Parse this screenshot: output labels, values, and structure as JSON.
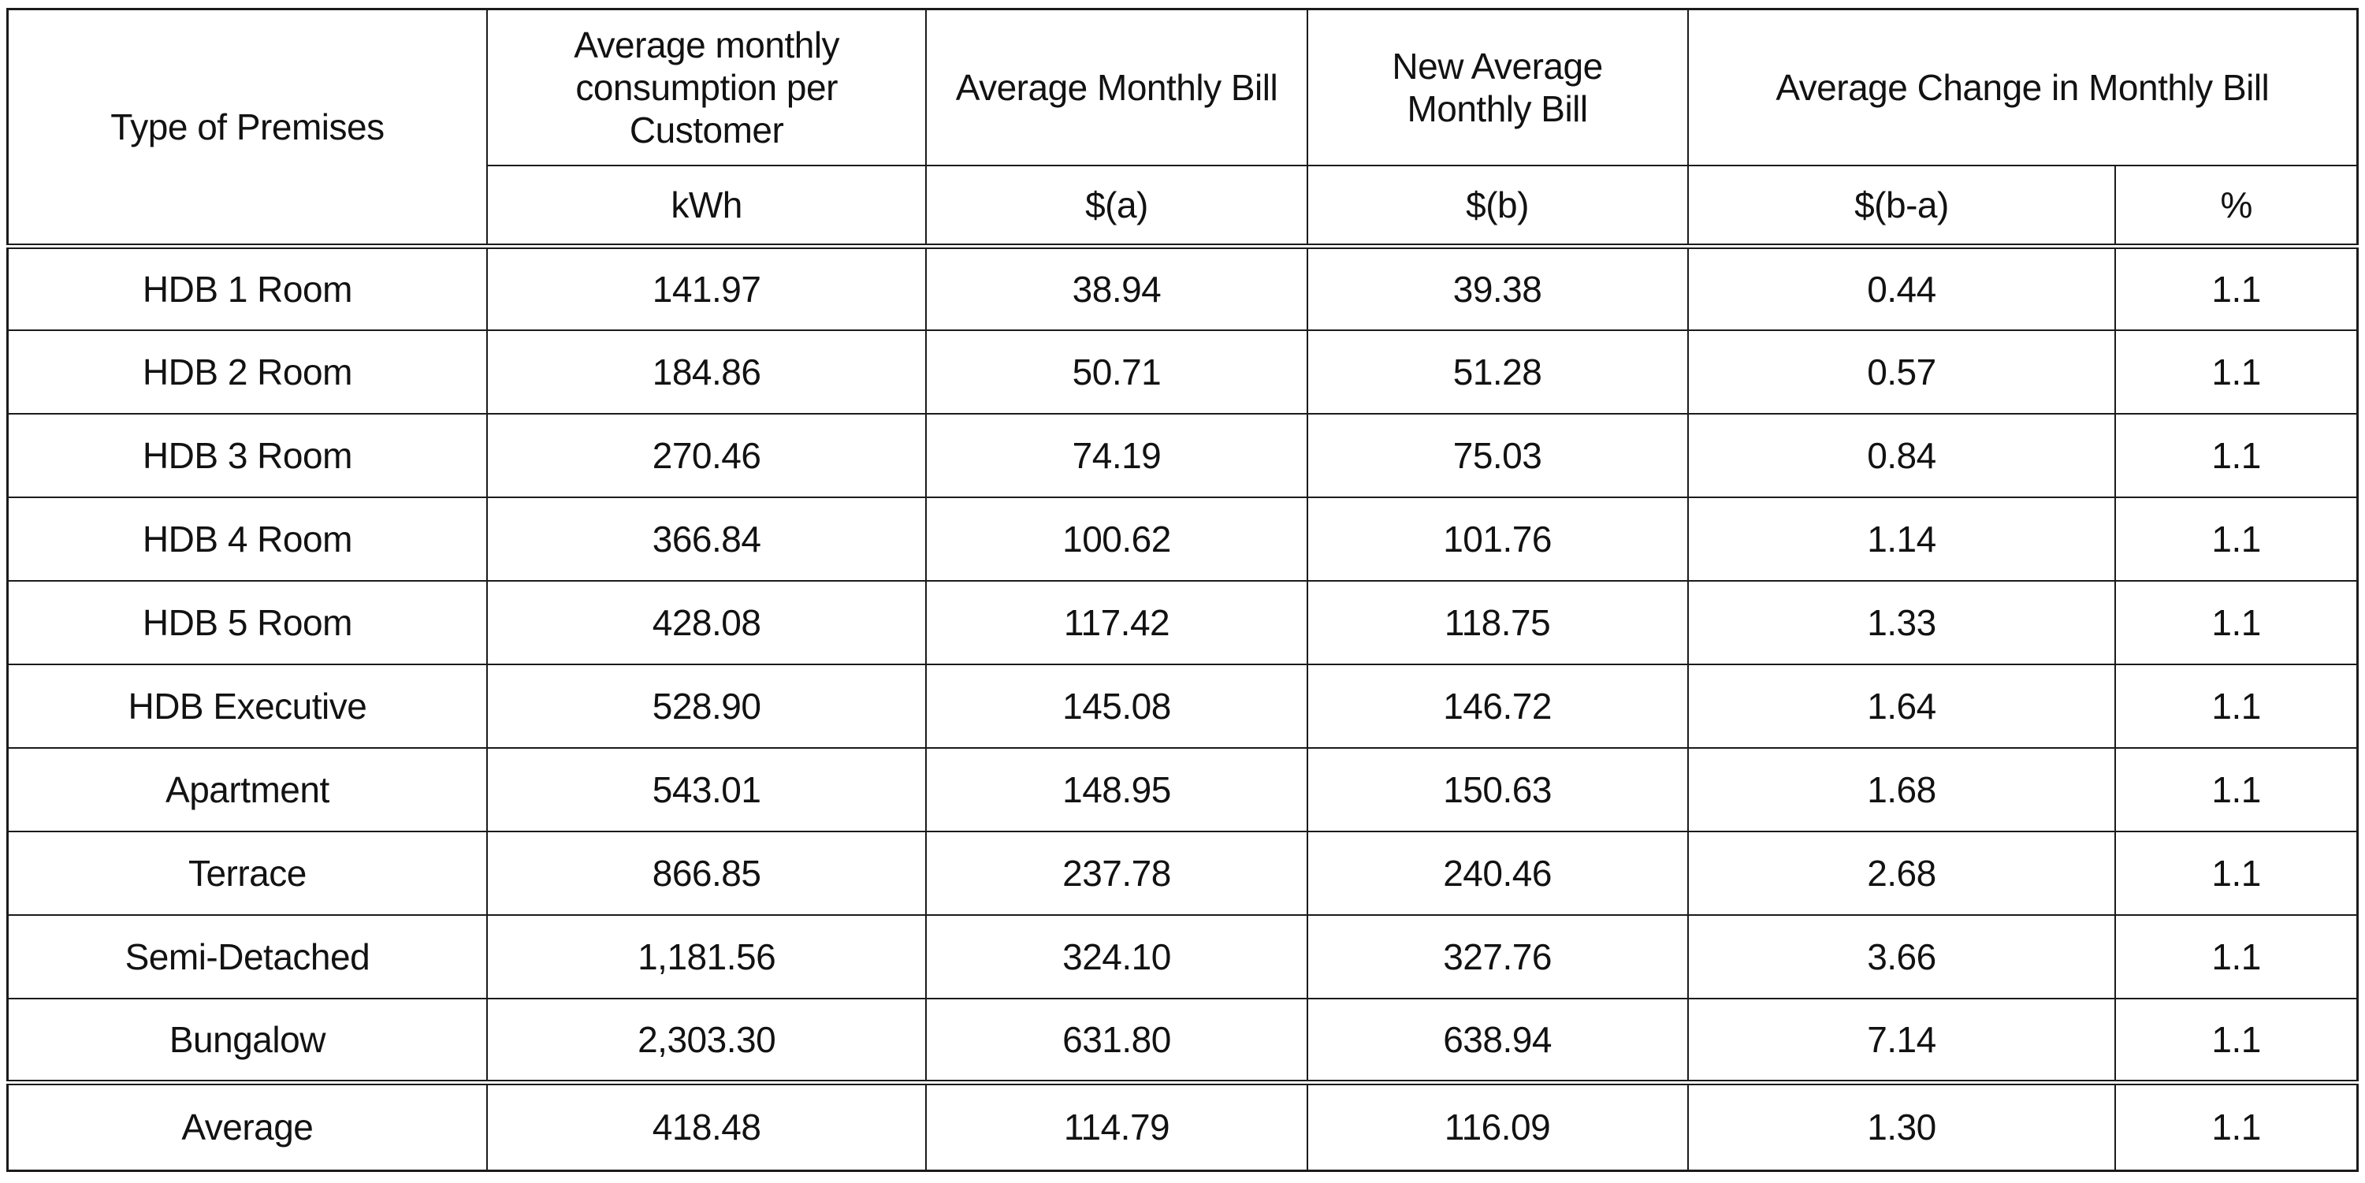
{
  "colors": {
    "background": "#ffffff",
    "border": "#1b1b1b",
    "text": "#121212"
  },
  "table": {
    "header_row_1": {
      "type_of_premises": "Type of Premises",
      "avg_monthly_consumption": "Average monthly consumption per Customer",
      "avg_monthly_bill": "Average Monthly Bill",
      "new_avg_monthly_bill": "New Average Monthly Bill",
      "avg_change_monthly_bill": "Average Change in Monthly Bill"
    },
    "header_row_2": {
      "kwh": "kWh",
      "bill_a": "$(a)",
      "bill_b": "$(b)",
      "change_dollar": "$(b-a)",
      "change_pct": "%"
    },
    "rows": [
      {
        "premises": "HDB 1 Room",
        "kwh": "141.97",
        "bill_a": "38.94",
        "bill_b": "39.38",
        "change_dollar": "0.44",
        "change_pct": "1.1"
      },
      {
        "premises": "HDB 2 Room",
        "kwh": "184.86",
        "bill_a": "50.71",
        "bill_b": "51.28",
        "change_dollar": "0.57",
        "change_pct": "1.1"
      },
      {
        "premises": "HDB 3 Room",
        "kwh": "270.46",
        "bill_a": "74.19",
        "bill_b": "75.03",
        "change_dollar": "0.84",
        "change_pct": "1.1"
      },
      {
        "premises": "HDB 4 Room",
        "kwh": "366.84",
        "bill_a": "100.62",
        "bill_b": "101.76",
        "change_dollar": "1.14",
        "change_pct": "1.1"
      },
      {
        "premises": "HDB 5 Room",
        "kwh": "428.08",
        "bill_a": "117.42",
        "bill_b": "118.75",
        "change_dollar": "1.33",
        "change_pct": "1.1"
      },
      {
        "premises": "HDB Executive",
        "kwh": "528.90",
        "bill_a": "145.08",
        "bill_b": "146.72",
        "change_dollar": "1.64",
        "change_pct": "1.1"
      },
      {
        "premises": "Apartment",
        "kwh": "543.01",
        "bill_a": "148.95",
        "bill_b": "150.63",
        "change_dollar": "1.68",
        "change_pct": "1.1"
      },
      {
        "premises": "Terrace",
        "kwh": "866.85",
        "bill_a": "237.78",
        "bill_b": "240.46",
        "change_dollar": "2.68",
        "change_pct": "1.1"
      },
      {
        "premises": "Semi-Detached",
        "kwh": "1,181.56",
        "bill_a": "324.10",
        "bill_b": "327.76",
        "change_dollar": "3.66",
        "change_pct": "1.1"
      },
      {
        "premises": "Bungalow",
        "kwh": "2,303.30",
        "bill_a": "631.80",
        "bill_b": "638.94",
        "change_dollar": "7.14",
        "change_pct": "1.1"
      }
    ],
    "average_row": {
      "premises": "Average",
      "kwh": "418.48",
      "bill_a": "114.79",
      "bill_b": "116.09",
      "change_dollar": "1.30",
      "change_pct": "1.1"
    }
  },
  "chart_data": {
    "type": "table",
    "columns": [
      "Type of Premises",
      "Average monthly consumption per Customer (kWh)",
      "Average Monthly Bill $(a)",
      "New Average Monthly Bill $(b)",
      "Average Change in Monthly Bill $(b-a)",
      "Average Change in Monthly Bill (%)"
    ],
    "rows": [
      [
        "HDB 1 Room",
        "141.97",
        "38.94",
        "39.38",
        "0.44",
        "1.1"
      ],
      [
        "HDB 2 Room",
        "184.86",
        "50.71",
        "51.28",
        "0.57",
        "1.1"
      ],
      [
        "HDB 3 Room",
        "270.46",
        "74.19",
        "75.03",
        "0.84",
        "1.1"
      ],
      [
        "HDB 4 Room",
        "366.84",
        "100.62",
        "101.76",
        "1.14",
        "1.1"
      ],
      [
        "HDB 5 Room",
        "428.08",
        "117.42",
        "118.75",
        "1.33",
        "1.1"
      ],
      [
        "HDB Executive",
        "528.90",
        "145.08",
        "146.72",
        "1.64",
        "1.1"
      ],
      [
        "Apartment",
        "543.01",
        "148.95",
        "150.63",
        "1.68",
        "1.1"
      ],
      [
        "Terrace",
        "866.85",
        "237.78",
        "240.46",
        "2.68",
        "1.1"
      ],
      [
        "Semi-Detached",
        "1,181.56",
        "324.10",
        "327.76",
        "3.66",
        "1.1"
      ],
      [
        "Bungalow",
        "2,303.30",
        "631.80",
        "638.94",
        "7.14",
        "1.1"
      ],
      [
        "Average",
        "418.48",
        "114.79",
        "116.09",
        "1.30",
        "1.1"
      ]
    ]
  }
}
